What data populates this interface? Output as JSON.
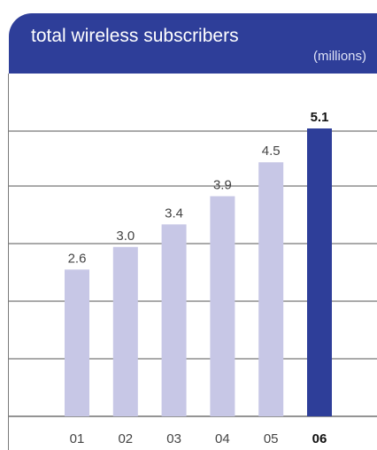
{
  "header": {
    "title": "total wireless subscribers",
    "unit": "(millions)"
  },
  "colors": {
    "header_bg": "#2e3e99",
    "bar_default": "#c7c7e6",
    "bar_highlight": "#2e3e99",
    "gridline": "#555555"
  },
  "chart_data": {
    "type": "bar",
    "title": "total wireless subscribers",
    "ylabel": "(millions)",
    "xlabel": "",
    "categories": [
      "01",
      "02",
      "03",
      "04",
      "05",
      "06"
    ],
    "series": [
      {
        "values": [
          2.6,
          3.0,
          3.4,
          3.9,
          4.5,
          5.1
        ],
        "labels": [
          "2.6",
          "3.0",
          "3.4",
          "3.9",
          "4.5",
          "5.1"
        ]
      }
    ],
    "highlight_index": 5,
    "ylim": [
      0,
      5.1
    ],
    "grid": true
  }
}
